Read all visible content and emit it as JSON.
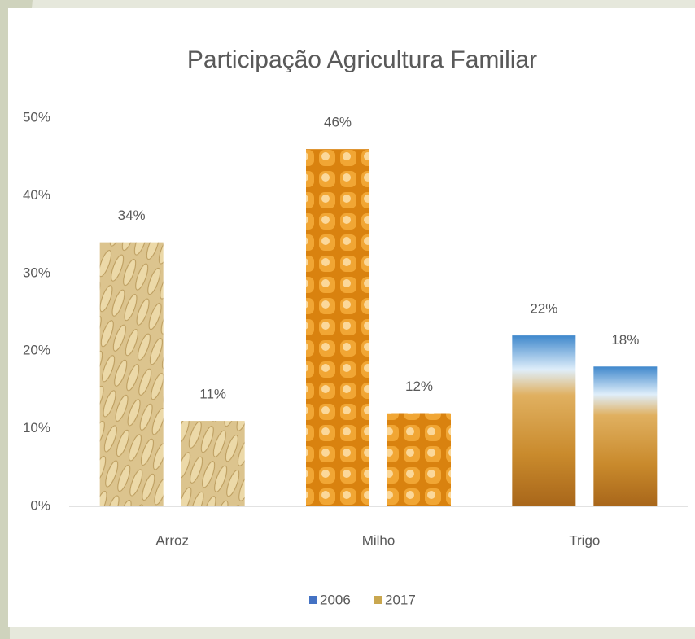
{
  "chart_data": {
    "type": "bar",
    "title": "Participação Agricultura Familiar",
    "categories": [
      "Arroz",
      "Milho",
      "Trigo"
    ],
    "series": [
      {
        "name": "2006",
        "color": "#4472c4",
        "values": [
          34,
          46,
          22
        ],
        "value_labels": [
          "34%",
          "46%",
          "22%"
        ]
      },
      {
        "name": "2017",
        "color": "#c9a74f",
        "values": [
          11,
          12,
          18
        ],
        "value_labels": [
          "11%",
          "12%",
          "18%"
        ]
      }
    ],
    "ylim": [
      0,
      50
    ],
    "yticks": [
      {
        "value": 0,
        "label": "0%"
      },
      {
        "value": 10,
        "label": "10%"
      },
      {
        "value": 20,
        "label": "20%"
      },
      {
        "value": 30,
        "label": "30%"
      },
      {
        "value": 40,
        "label": "40%"
      },
      {
        "value": 50,
        "label": "50%"
      }
    ],
    "grid": false,
    "legend": "bottom"
  }
}
